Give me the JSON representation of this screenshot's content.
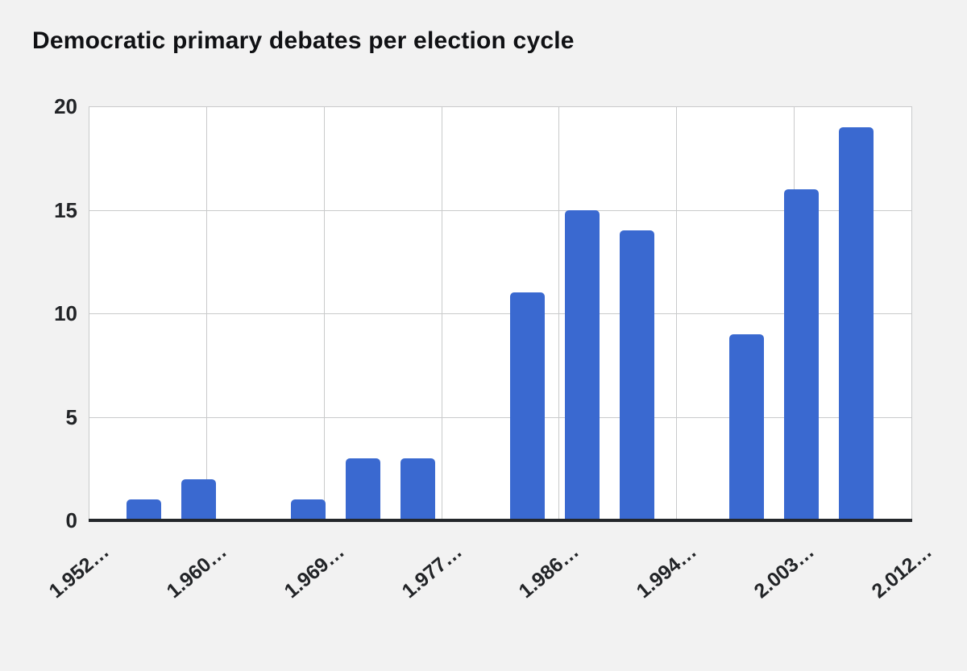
{
  "colors": {
    "background": "#f2f2f2",
    "plot_background": "#ffffff",
    "gridline": "#c9cacb",
    "axis_line": "#24272b",
    "bar": "#3a69d0",
    "title_text": "#101114",
    "tick_text": "#222427"
  },
  "chart_data": {
    "type": "bar",
    "title": "Democratic primary debates per election cycle",
    "xlabel": "",
    "ylabel": "",
    "x_range": [
      1952,
      2012
    ],
    "ylim": [
      0,
      20
    ],
    "y_ticks": [
      0,
      5,
      10,
      15,
      20
    ],
    "x_tick_labels": [
      "1.952…",
      "1.960…",
      "1.969…",
      "1.977…",
      "1.986…",
      "1.994…",
      "2.003…",
      "2.012…"
    ],
    "x_gridline_count": 8,
    "grid": true,
    "legend": "none",
    "series": [
      {
        "name": "Democratic primary debates",
        "points": [
          {
            "x": 1956,
            "y": 1
          },
          {
            "x": 1960,
            "y": 2
          },
          {
            "x": 1968,
            "y": 1
          },
          {
            "x": 1972,
            "y": 3
          },
          {
            "x": 1976,
            "y": 3
          },
          {
            "x": 1984,
            "y": 11
          },
          {
            "x": 1988,
            "y": 15
          },
          {
            "x": 1992,
            "y": 14
          },
          {
            "x": 2000,
            "y": 9
          },
          {
            "x": 2004,
            "y": 16
          },
          {
            "x": 2008,
            "y": 19
          }
        ]
      }
    ]
  }
}
